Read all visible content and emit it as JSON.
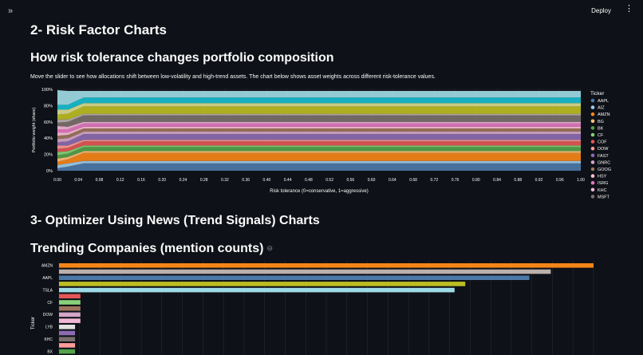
{
  "toolbar": {
    "expand_icon": "»",
    "deploy_label": "Deploy",
    "menu_icon": "⋮"
  },
  "headings": {
    "risk_factor": "2- Risk Factor Charts",
    "how_risk": "How risk tolerance changes portfolio composition",
    "description": "Move the slider to see how allocations shift between low-volatility and high-trend assets. The chart below shows asset weights across different risk-tolerance values.",
    "optimizer": "3- Optimizer Using News (Trend Signals) Charts",
    "trending": "Trending Companies (mention counts)",
    "link_icon": "⊖"
  },
  "chart_data": [
    {
      "type": "area",
      "xlabel": "Risk tolerance (0=conservative, 1=aggressive)",
      "ylabel": "Portfolio weight (share)",
      "x_ticks": [
        "0.00",
        "0.04",
        "0.08",
        "0.12",
        "0.16",
        "0.20",
        "0.24",
        "0.28",
        "0.32",
        "0.36",
        "0.40",
        "0.44",
        "0.48",
        "0.52",
        "0.56",
        "0.60",
        "0.64",
        "0.68",
        "0.72",
        "0.76",
        "0.80",
        "0.84",
        "0.88",
        "0.92",
        "0.96",
        "1.00"
      ],
      "y_ticks": [
        "0%",
        "20%",
        "40%",
        "60%",
        "80%",
        "100%"
      ],
      "ylim": [
        0,
        1
      ],
      "xlim": [
        0,
        1
      ],
      "legend_title": "Ticker",
      "legend_position": "right",
      "x": [
        0,
        0.02,
        0.05,
        1.0
      ],
      "series": [
        {
          "name": "AAPL",
          "color": "#4c78a8",
          "values": [
            0.03,
            0.05,
            0.09,
            0.09
          ]
        },
        {
          "name": "AIZ",
          "color": "#9ecae9",
          "values": [
            0.04,
            0.04,
            0.03,
            0.03
          ]
        },
        {
          "name": "AMZN",
          "color": "#f58518",
          "values": [
            0.04,
            0.05,
            0.1,
            0.1
          ]
        },
        {
          "name": "BG",
          "color": "#ffbf79",
          "values": [
            0.04,
            0.03,
            0.02,
            0.02
          ]
        },
        {
          "name": "BK",
          "color": "#54a24b",
          "values": [
            0.04,
            0.04,
            0.05,
            0.05
          ]
        },
        {
          "name": "CF",
          "color": "#88d27a",
          "values": [
            0.04,
            0.03,
            0.02,
            0.02
          ]
        },
        {
          "name": "COF",
          "color": "#e45756",
          "values": [
            0.04,
            0.04,
            0.05,
            0.05
          ]
        },
        {
          "name": "DOW",
          "color": "#ff9d98",
          "values": [
            0.04,
            0.03,
            0.02,
            0.02
          ]
        },
        {
          "name": "FAST",
          "color": "#8c6bb1",
          "values": [
            0.04,
            0.05,
            0.07,
            0.07
          ]
        },
        {
          "name": "GNRC",
          "color": "#d4a6c8",
          "values": [
            0.04,
            0.04,
            0.03,
            0.03
          ]
        },
        {
          "name": "GOOG",
          "color": "#9d755d",
          "values": [
            0.04,
            0.04,
            0.04,
            0.04
          ]
        },
        {
          "name": "HSY",
          "color": "#fcbfd2",
          "values": [
            0.04,
            0.03,
            0.02,
            0.02
          ]
        },
        {
          "name": "ISRG",
          "color": "#e377c2",
          "values": [
            0.04,
            0.04,
            0.04,
            0.04
          ]
        },
        {
          "name": "KHC",
          "color": "#f2b6d5",
          "values": [
            0.04,
            0.03,
            0.02,
            0.02
          ]
        },
        {
          "name": "MSFT",
          "color": "#79706e",
          "values": [
            0.04,
            0.06,
            0.08,
            0.08
          ]
        },
        {
          "name": "",
          "color": "#bab0ac",
          "values": [
            0.04,
            0.03,
            0.02,
            0.02
          ]
        },
        {
          "name": "",
          "color": "#bcbd22",
          "values": [
            0.06,
            0.07,
            0.09,
            0.09
          ]
        },
        {
          "name": "",
          "color": "#dbdb8d",
          "values": [
            0.06,
            0.05,
            0.04,
            0.04
          ]
        },
        {
          "name": "",
          "color": "#17becf",
          "values": [
            0.06,
            0.06,
            0.07,
            0.07
          ]
        },
        {
          "name": "",
          "color": "#9edae5",
          "values": [
            0.18,
            0.17,
            0.08,
            0.08
          ]
        }
      ]
    },
    {
      "type": "bar",
      "orientation": "horizontal",
      "ylabel": "Ticker",
      "y_tick_labels": [
        "AMZN",
        "AAPL",
        "TSLA",
        "CF",
        "DOW",
        "LYB",
        "KHC",
        "BX"
      ],
      "xlim": [
        0,
        100
      ],
      "bars": [
        {
          "category": "AMZN",
          "value": 100,
          "color": "#f58518"
        },
        {
          "category": "",
          "value": 92,
          "color": "#bab0ac"
        },
        {
          "category": "AAPL",
          "value": 88,
          "color": "#4c78a8"
        },
        {
          "category": "",
          "value": 76,
          "color": "#bcbd22"
        },
        {
          "category": "TSLA",
          "value": 74,
          "color": "#9edae5"
        },
        {
          "category": "",
          "value": 4,
          "color": "#e45756"
        },
        {
          "category": "CF",
          "value": 4,
          "color": "#88d27a"
        },
        {
          "category": "",
          "value": 4,
          "color": "#9d755d"
        },
        {
          "category": "DOW",
          "value": 4,
          "color": "#d4a6c8"
        },
        {
          "category": "",
          "value": 4,
          "color": "#f2b6d5"
        },
        {
          "category": "LYB",
          "value": 3,
          "color": "#e0e0e0"
        },
        {
          "category": "",
          "value": 3,
          "color": "#8c6bb1"
        },
        {
          "category": "KHC",
          "value": 3,
          "color": "#79706e"
        },
        {
          "category": "",
          "value": 3,
          "color": "#ff9d98"
        },
        {
          "category": "BX",
          "value": 3,
          "color": "#54a24b"
        }
      ]
    }
  ]
}
